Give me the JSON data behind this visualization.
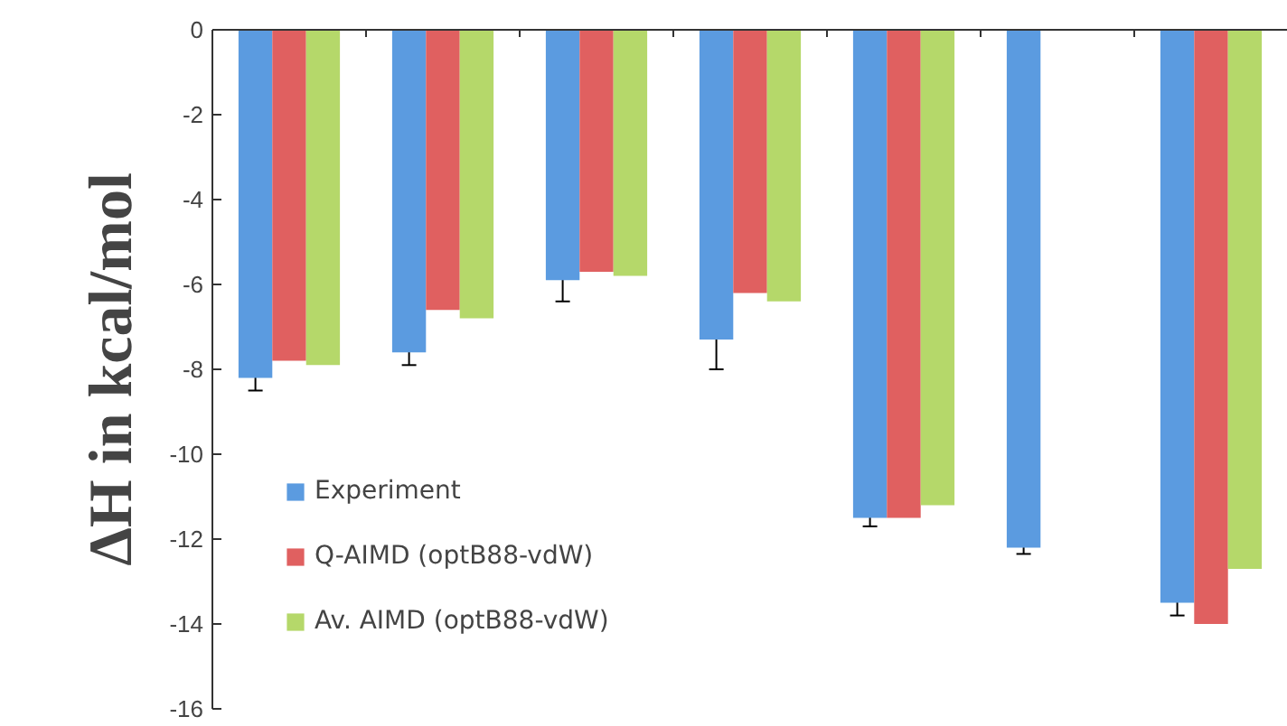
{
  "chart_data": {
    "type": "bar",
    "ylabel": "ΔH in kcal/mol",
    "categories": [
      null,
      null,
      null,
      null,
      null,
      null,
      null
    ],
    "series": [
      {
        "name": "Experiment",
        "color": "#5b9be0",
        "values": [
          -8.2,
          -7.6,
          -5.9,
          -7.3,
          -11.5,
          -12.2,
          -13.5
        ],
        "errors": [
          0.3,
          0.3,
          0.5,
          0.7,
          0.2,
          0.15,
          0.3
        ]
      },
      {
        "name": "Q-AIMD (optB88-vdW)",
        "color": "#e06060",
        "values": [
          -7.8,
          -6.6,
          -5.7,
          -6.2,
          -11.5,
          null,
          -14.0
        ]
      },
      {
        "name": "Av. AIMD (optB88-vdW)",
        "color": "#b5d86a",
        "values": [
          -7.9,
          -6.8,
          -5.8,
          -6.4,
          -11.2,
          null,
          -12.7
        ]
      }
    ],
    "ylim": [
      -16,
      0
    ],
    "yticks": [
      -16,
      -14,
      -12,
      -10,
      -8,
      -6,
      -4,
      -2,
      0
    ],
    "tick_labels": "y",
    "grid": false,
    "legend": "bottom left"
  }
}
